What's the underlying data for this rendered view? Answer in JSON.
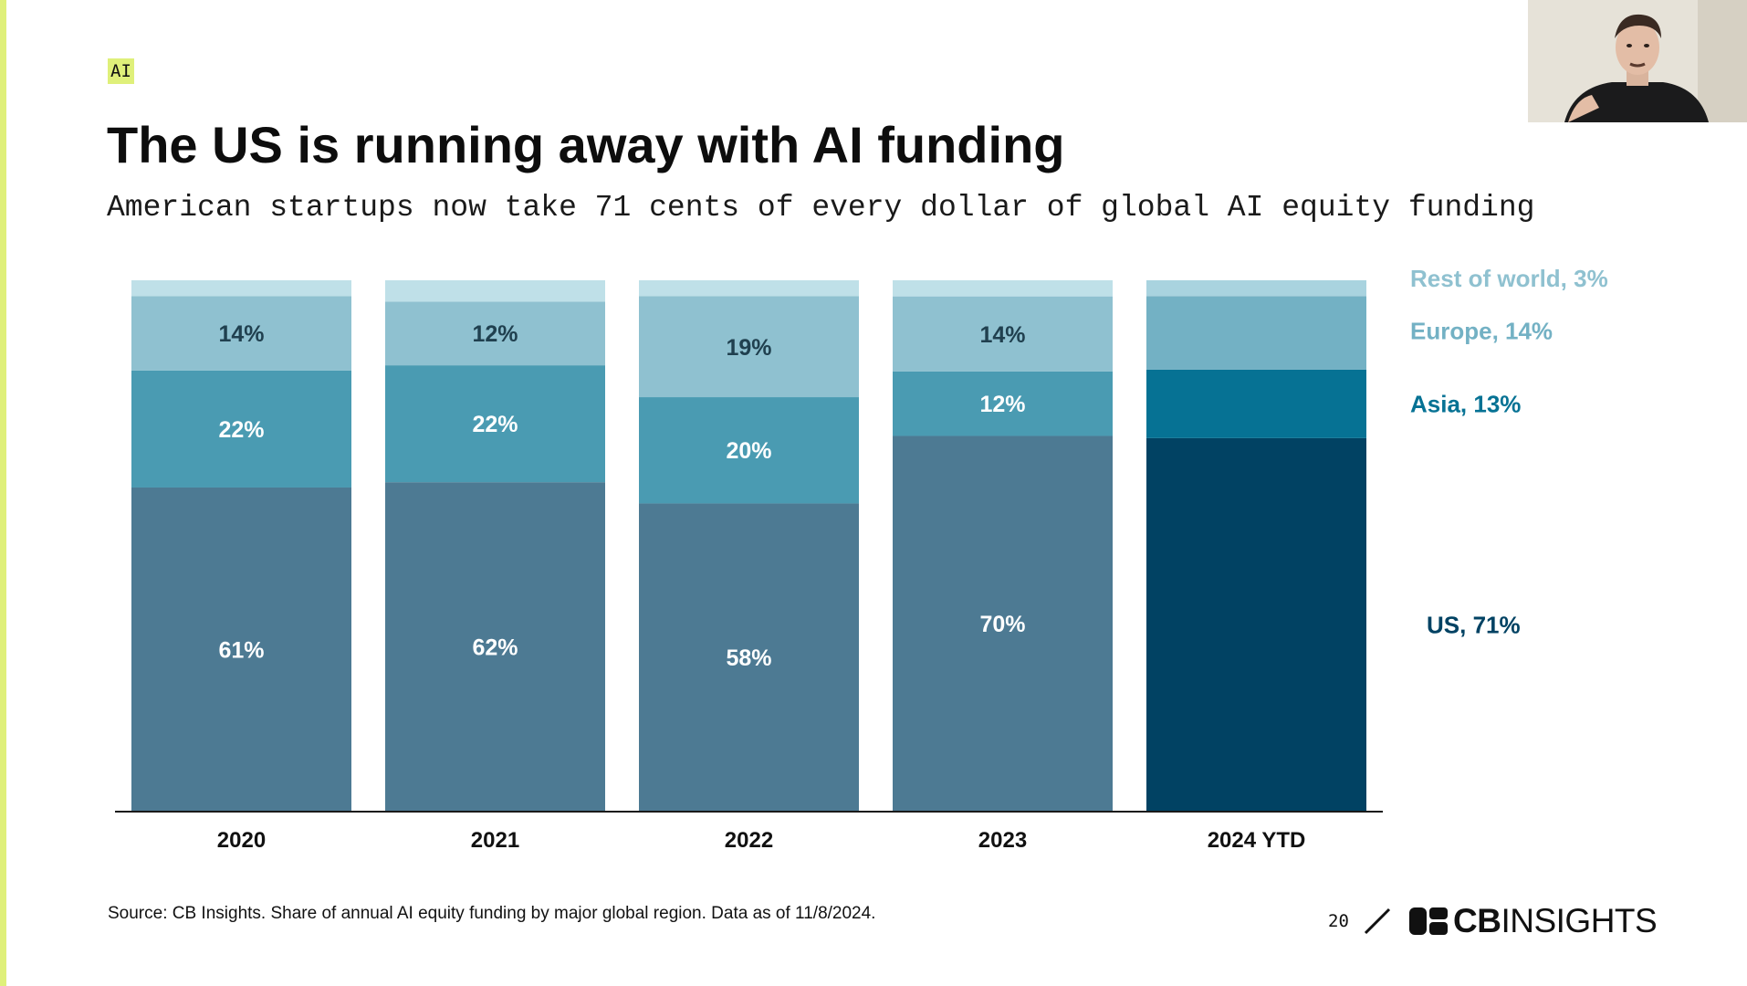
{
  "slide": {
    "tag": "AI",
    "title": "The US is running away with AI funding",
    "subtitle": "American startups now take 71 cents of every dollar of global AI equity funding",
    "source": "Source: CB Insights. Share of annual AI equity funding by major global region. Data as of 11/8/2024.",
    "page_number": "20",
    "logo_bold": "CB",
    "logo_light": "INSIGHTS"
  },
  "colors": {
    "accent": "#dff07a",
    "us_past": "#4d7a93",
    "asia_past": "#4a9bb2",
    "europe_past": "#8fc1d0",
    "rest_past": "#bfe0e8",
    "us_2024": "#014263",
    "asia_2024": "#067294",
    "europe_2024": "#73b1c4",
    "rest_2024": "#a9d3df"
  },
  "chart_data": {
    "type": "bar",
    "stacked": true,
    "categories": [
      "2020",
      "2021",
      "2022",
      "2023",
      "2024 YTD"
    ],
    "series": [
      {
        "name": "US",
        "values": [
          61,
          62,
          58,
          70,
          71
        ],
        "labels": [
          "61%",
          "62%",
          "58%",
          "70%",
          ""
        ]
      },
      {
        "name": "Asia",
        "values": [
          22,
          22,
          20,
          12,
          13
        ],
        "labels": [
          "22%",
          "22%",
          "20%",
          "12%",
          ""
        ]
      },
      {
        "name": "Europe",
        "values": [
          14,
          12,
          19,
          14,
          14
        ],
        "labels": [
          "14%",
          "12%",
          "19%",
          "14%",
          ""
        ]
      },
      {
        "name": "Rest of world",
        "values": [
          3,
          4,
          3,
          3,
          3
        ],
        "labels": [
          "",
          "",
          "",
          "",
          ""
        ]
      }
    ],
    "legend": [
      {
        "series": "Rest of world",
        "text": "Rest of world, 3%"
      },
      {
        "series": "Europe",
        "text": "Europe, 14%"
      },
      {
        "series": "Asia",
        "text": "Asia, 13%"
      },
      {
        "series": "US",
        "text": "US, 71%"
      }
    ],
    "legend_position": "right",
    "ylim": [
      0,
      100
    ],
    "grid": false
  }
}
